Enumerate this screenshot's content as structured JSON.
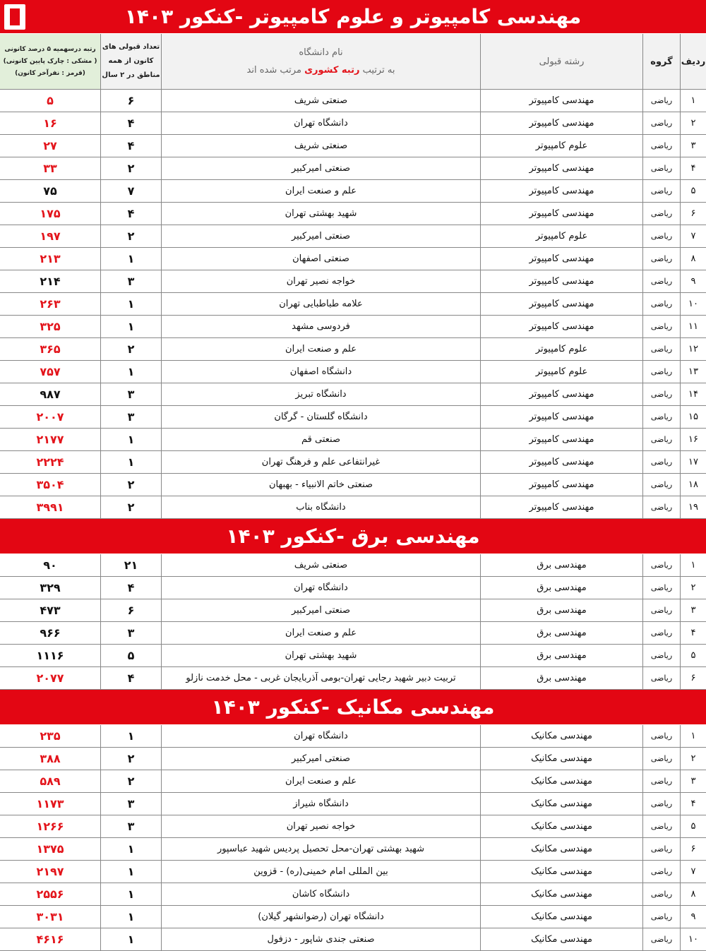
{
  "table_header": {
    "no": "ردیف",
    "group": "گروه",
    "major": "رشته قبولی",
    "university": "نام دانشگاه",
    "sort_before": "به ترتیب",
    "sort_key": "رتبه کشوری",
    "sort_after": "مرتب شده اند",
    "count_lines": [
      "تعداد قبولی های",
      "کانون از همه",
      "مناطق در ۲ سال"
    ],
    "rank_lines": [
      "رتبه درسهمیه ۵ درصد کانونی",
      "( مشکی : چارک پایین کانونی)",
      "(قرمز : نفرآخر کانون)"
    ]
  },
  "sections": [
    {
      "title": "مهندسی کامپیوتر و علوم کامپیوتر  -کنکور ۱۴۰۳",
      "rows": [
        {
          "no": "۱",
          "group": "ریاضی",
          "major": "مهندسی کامپیوتر",
          "university": "صنعتی شریف",
          "count": "۶",
          "rank": "۵",
          "color": "#e3141b"
        },
        {
          "no": "۲",
          "group": "ریاضی",
          "major": "مهندسی کامپیوتر",
          "university": "دانشگاه تهران",
          "count": "۴",
          "rank": "۱۶",
          "color": "#e3141b"
        },
        {
          "no": "۳",
          "group": "ریاضی",
          "major": "علوم کامپیوتر",
          "university": "صنعتی شریف",
          "count": "۴",
          "rank": "۲۷",
          "color": "#e3141b"
        },
        {
          "no": "۴",
          "group": "ریاضی",
          "major": "مهندسی کامپیوتر",
          "university": "صنعتی امیرکبیر",
          "count": "۲",
          "rank": "۳۳",
          "color": "#e3141b"
        },
        {
          "no": "۵",
          "group": "ریاضی",
          "major": "مهندسی کامپیوتر",
          "university": "علم و صنعت ایران",
          "count": "۷",
          "rank": "۷۵",
          "color": "#111111"
        },
        {
          "no": "۶",
          "group": "ریاضی",
          "major": "مهندسی کامپیوتر",
          "university": "شهید بهشتی تهران",
          "count": "۴",
          "rank": "۱۷۵",
          "color": "#e3141b"
        },
        {
          "no": "۷",
          "group": "ریاضی",
          "major": "علوم کامپیوتر",
          "university": "صنعتی امیرکبیر",
          "count": "۲",
          "rank": "۱۹۷",
          "color": "#e3141b"
        },
        {
          "no": "۸",
          "group": "ریاضی",
          "major": "مهندسی کامپیوتر",
          "university": "صنعتی اصفهان",
          "count": "۱",
          "rank": "۲۱۳",
          "color": "#e3141b"
        },
        {
          "no": "۹",
          "group": "ریاضی",
          "major": "مهندسی کامپیوتر",
          "university": "خواجه نصیر تهران",
          "count": "۳",
          "rank": "۲۱۴",
          "color": "#111111"
        },
        {
          "no": "۱۰",
          "group": "ریاضی",
          "major": "مهندسی کامپیوتر",
          "university": "علامه طباطبایی تهران",
          "count": "۱",
          "rank": "۲۶۳",
          "color": "#e3141b"
        },
        {
          "no": "۱۱",
          "group": "ریاضی",
          "major": "مهندسی کامپیوتر",
          "university": "فردوسی مشهد",
          "count": "۱",
          "rank": "۳۲۵",
          "color": "#e3141b"
        },
        {
          "no": "۱۲",
          "group": "ریاضی",
          "major": "علوم کامپیوتر",
          "university": "علم و صنعت ایران",
          "count": "۲",
          "rank": "۳۶۵",
          "color": "#e3141b"
        },
        {
          "no": "۱۳",
          "group": "ریاضی",
          "major": "علوم کامپیوتر",
          "university": "دانشگاه اصفهان",
          "count": "۱",
          "rank": "۷۵۷",
          "color": "#e3141b"
        },
        {
          "no": "۱۴",
          "group": "ریاضی",
          "major": "مهندسی کامپیوتر",
          "university": "دانشگاه تبریز",
          "count": "۳",
          "rank": "۹۸۷",
          "color": "#111111"
        },
        {
          "no": "۱۵",
          "group": "ریاضی",
          "major": "مهندسی کامپیوتر",
          "university": "دانشگاه گلستان - گرگان",
          "count": "۳",
          "rank": "۲۰۰۷",
          "color": "#e3141b"
        },
        {
          "no": "۱۶",
          "group": "ریاضی",
          "major": "مهندسی کامپیوتر",
          "university": "صنعتی قم",
          "count": "۱",
          "rank": "۲۱۷۷",
          "color": "#e3141b"
        },
        {
          "no": "۱۷",
          "group": "ریاضی",
          "major": "مهندسی کامپیوتر",
          "university": "غیرانتفاعی علم و فرهنگ تهران",
          "count": "۱",
          "rank": "۲۲۲۴",
          "color": "#e3141b"
        },
        {
          "no": "۱۸",
          "group": "ریاضی",
          "major": "مهندسی کامپیوتر",
          "university": "صنعتی خاتم الانبیاء - بهبهان",
          "count": "۲",
          "rank": "۳۵۰۴",
          "color": "#e3141b"
        },
        {
          "no": "۱۹",
          "group": "ریاضی",
          "major": "مهندسی کامپیوتر",
          "university": "دانشگاه بناب",
          "count": "۲",
          "rank": "۳۹۹۱",
          "color": "#e3141b"
        }
      ]
    },
    {
      "title": "مهندسی برق -کنکور ۱۴۰۳",
      "rows": [
        {
          "no": "۱",
          "group": "ریاضی",
          "major": "مهندسی برق",
          "university": "صنعتی شریف",
          "count": "۲۱",
          "rank": "۹۰",
          "color": "#111111"
        },
        {
          "no": "۲",
          "group": "ریاضی",
          "major": "مهندسی برق",
          "university": "دانشگاه تهران",
          "count": "۴",
          "rank": "۳۲۹",
          "color": "#111111"
        },
        {
          "no": "۳",
          "group": "ریاضی",
          "major": "مهندسی برق",
          "university": "صنعتی امیرکبیر",
          "count": "۶",
          "rank": "۴۷۳",
          "color": "#111111"
        },
        {
          "no": "۴",
          "group": "ریاضی",
          "major": "مهندسی برق",
          "university": "علم و صنعت ایران",
          "count": "۳",
          "rank": "۹۶۶",
          "color": "#111111"
        },
        {
          "no": "۵",
          "group": "ریاضی",
          "major": "مهندسی برق",
          "university": "شهید بهشتی تهران",
          "count": "۵",
          "rank": "۱۱۱۶",
          "color": "#111111"
        },
        {
          "no": "۶",
          "group": "ریاضی",
          "major": "مهندسی برق",
          "university": "تربیت دبیر شهید رجایی تهران-بومی آذربایجان غربی - محل خدمت نازلو",
          "count": "۴",
          "rank": "۲۰۷۷",
          "color": "#e3141b"
        }
      ]
    },
    {
      "title": "مهندسی مکانیک -کنکور ۱۴۰۳",
      "rows": [
        {
          "no": "۱",
          "group": "ریاضی",
          "major": "مهندسی مکانیک",
          "university": "دانشگاه تهران",
          "count": "۱",
          "rank": "۲۳۵",
          "color": "#e3141b"
        },
        {
          "no": "۲",
          "group": "ریاضی",
          "major": "مهندسی مکانیک",
          "university": "صنعتی امیرکبیر",
          "count": "۲",
          "rank": "۳۸۸",
          "color": "#e3141b"
        },
        {
          "no": "۳",
          "group": "ریاضی",
          "major": "مهندسی مکانیک",
          "university": "علم و صنعت ایران",
          "count": "۲",
          "rank": "۵۸۹",
          "color": "#e3141b"
        },
        {
          "no": "۴",
          "group": "ریاضی",
          "major": "مهندسی مکانیک",
          "university": "دانشگاه شیراز",
          "count": "۳",
          "rank": "۱۱۷۳",
          "color": "#e3141b"
        },
        {
          "no": "۵",
          "group": "ریاضی",
          "major": "مهندسی مکانیک",
          "university": "خواجه نصیر تهران",
          "count": "۳",
          "rank": "۱۲۶۶",
          "color": "#e3141b"
        },
        {
          "no": "۶",
          "group": "ریاضی",
          "major": "مهندسی مکانیک",
          "university": "شهید بهشتی تهران-محل تحصیل پردیس شهید عباسپور",
          "count": "۱",
          "rank": "۱۳۷۵",
          "color": "#e3141b"
        },
        {
          "no": "۷",
          "group": "ریاضی",
          "major": "مهندسی مکانیک",
          "university": "بین المللی امام خمینی(ره) - قزوین",
          "count": "۱",
          "rank": "۲۱۹۷",
          "color": "#e3141b"
        },
        {
          "no": "۸",
          "group": "ریاضی",
          "major": "مهندسی مکانیک",
          "university": "دانشگاه کاشان",
          "count": "۱",
          "rank": "۲۵۵۶",
          "color": "#e3141b"
        },
        {
          "no": "۹",
          "group": "ریاضی",
          "major": "مهندسی مکانیک",
          "university": "دانشگاه تهران (رضوانشهر گیلان)",
          "count": "۱",
          "rank": "۳۰۳۱",
          "color": "#e3141b"
        },
        {
          "no": "۱۰",
          "group": "ریاضی",
          "major": "مهندسی مکانیک",
          "university": "صنعتی جندی شاپور - دزفول",
          "count": "۱",
          "rank": "۴۶۱۶",
          "color": "#e3141b"
        }
      ]
    }
  ]
}
